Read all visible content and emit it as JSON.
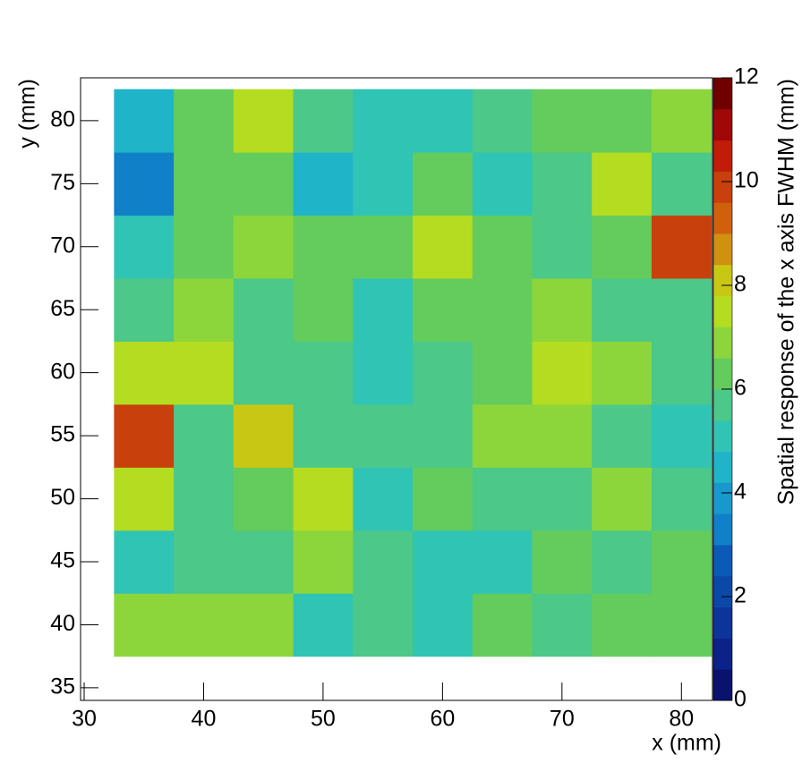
{
  "chart_data": {
    "type": "heatmap",
    "xlabel": "x (mm)",
    "ylabel": "y (mm)",
    "zlabel": "Spatial response of the x axis FWHM (mm)",
    "x_bins": [
      32.5,
      37.5,
      42.5,
      47.5,
      52.5,
      57.5,
      62.5,
      67.5,
      72.5,
      77.5,
      82.5
    ],
    "y_bins": [
      37.5,
      42.5,
      47.5,
      52.5,
      57.5,
      62.5,
      67.5,
      72.5,
      77.5,
      82.5
    ],
    "z": [
      [
        6.9,
        6.9,
        6.9,
        5.1,
        5.7,
        5.1,
        6.3,
        5.7,
        6.3,
        6.3
      ],
      [
        5.1,
        5.7,
        5.7,
        6.9,
        5.7,
        5.1,
        5.1,
        6.3,
        5.7,
        6.3
      ],
      [
        7.5,
        5.7,
        6.3,
        7.5,
        5.1,
        6.3,
        5.7,
        5.7,
        6.9,
        5.7
      ],
      [
        9.9,
        5.7,
        8.1,
        5.7,
        5.7,
        5.7,
        6.9,
        6.9,
        5.7,
        5.1
      ],
      [
        7.5,
        7.5,
        5.7,
        5.7,
        5.1,
        5.7,
        6.3,
        7.5,
        6.9,
        5.7
      ],
      [
        5.7,
        6.9,
        5.7,
        6.3,
        5.1,
        6.3,
        6.3,
        6.9,
        5.7,
        5.7
      ],
      [
        5.1,
        6.3,
        6.9,
        6.3,
        6.3,
        7.5,
        6.3,
        5.7,
        6.3,
        9.9
      ],
      [
        3.3,
        6.3,
        6.3,
        4.5,
        5.1,
        6.3,
        5.1,
        5.7,
        7.5,
        5.7
      ],
      [
        4.5,
        6.3,
        7.5,
        5.7,
        5.1,
        5.1,
        5.7,
        6.3,
        6.3,
        6.9
      ]
    ],
    "xlim": [
      29.7,
      82.6
    ],
    "ylim": [
      34.0,
      83.4
    ],
    "zlim": [
      0,
      12
    ],
    "xticks": [
      30,
      40,
      50,
      60,
      70,
      80
    ],
    "yticks": [
      35,
      40,
      45,
      50,
      55,
      60,
      65,
      70,
      75,
      80
    ],
    "zticks": [
      0,
      2,
      4,
      6,
      8,
      10,
      12
    ],
    "palette": [
      "#0a1270",
      "#0c2288",
      "#0c349a",
      "#0c48a8",
      "#0c5ab8",
      "#1080c8",
      "#1898cc",
      "#20b4c8",
      "#30c4b4",
      "#4cc888",
      "#64cc5c",
      "#8cd63c",
      "#b4dc20",
      "#c8c814",
      "#d09010",
      "#d0600c",
      "#c8400c",
      "#c01c08",
      "#a00808",
      "#700000"
    ]
  }
}
